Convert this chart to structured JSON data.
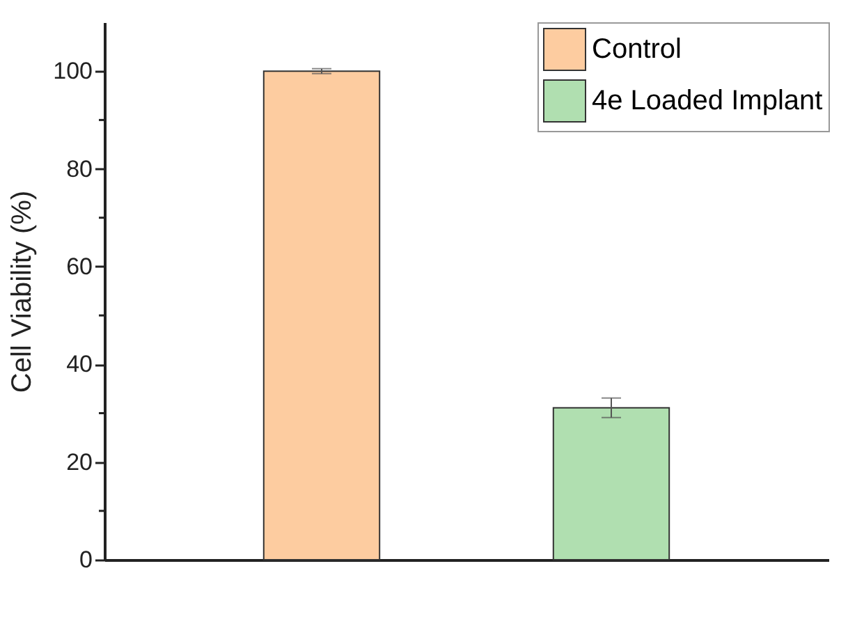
{
  "chart_data": {
    "type": "bar",
    "ylabel": "Cell Viability (%)",
    "categories": [
      null,
      null
    ],
    "series": [
      {
        "name": "Control",
        "color": "#fdcca0",
        "values": [
          100,
          null
        ],
        "errors": [
          0.5,
          null
        ]
      },
      {
        "name": "4e Loaded Implant",
        "color": "#b0dfb0",
        "values": [
          null,
          31.1
        ],
        "errors": [
          null,
          2
        ]
      }
    ],
    "ylim": [
      0,
      110
    ],
    "yticks": [
      0,
      {
        "value": 10,
        "label": null
      },
      20,
      {
        "value": 30,
        "label": null
      },
      40,
      {
        "value": 50,
        "label": null
      },
      60,
      {
        "value": 70,
        "label": null
      },
      80,
      {
        "value": 90,
        "label": null
      },
      100
    ],
    "tick_labels": "y",
    "legend": "top right",
    "grid": false
  }
}
